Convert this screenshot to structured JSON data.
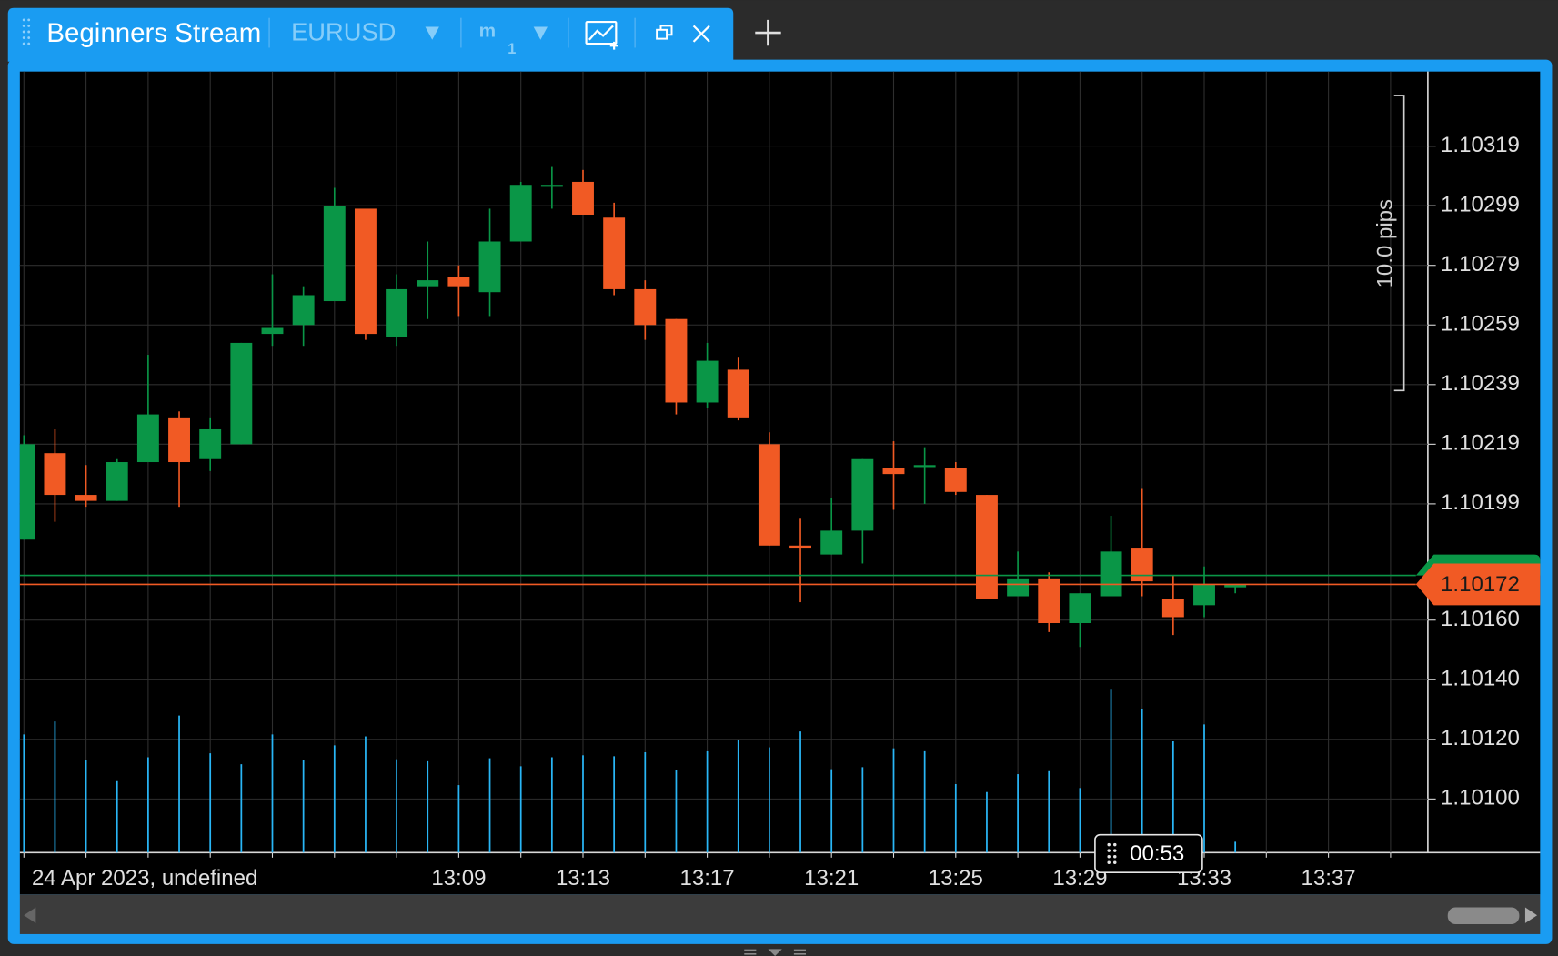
{
  "tab": {
    "title": "Beginners Stream",
    "symbol": "EURUSD",
    "timeframe": "m",
    "timeframe_count": "1"
  },
  "chart_data": {
    "type": "candlestick",
    "date_label": "24 Apr 2023, undefined",
    "open": [
      1.10187,
      1.10216,
      1.10202,
      1.102,
      1.10213,
      1.10228,
      1.10214,
      1.10219,
      1.10256,
      1.10259,
      1.10267,
      1.10298,
      1.10255,
      1.10272,
      1.10275,
      1.1027,
      1.10287,
      1.10306,
      1.10307,
      1.10295,
      1.10271,
      1.10261,
      1.10233,
      1.10244,
      1.10219,
      1.10185,
      1.10182,
      1.1019,
      1.10211,
      1.10212,
      1.10211,
      1.10202,
      1.10168,
      1.10174,
      1.10159,
      1.10168,
      1.10184,
      1.10167,
      1.10165,
      1.10171
    ],
    "high": [
      1.10222,
      1.10224,
      1.10212,
      1.10214,
      1.10249,
      1.1023,
      1.10228,
      1.10253,
      1.10276,
      1.10272,
      1.10305,
      1.10298,
      1.10276,
      1.10287,
      1.10279,
      1.10298,
      1.10307,
      1.10312,
      1.10311,
      1.103,
      1.10274,
      1.10261,
      1.10253,
      1.10248,
      1.10223,
      1.10194,
      1.10201,
      1.10214,
      1.1022,
      1.10218,
      1.10213,
      1.10202,
      1.10183,
      1.10176,
      1.10169,
      1.10195,
      1.10204,
      1.10175,
      1.10178,
      1.10172
    ],
    "low": [
      1.10187,
      1.10193,
      1.10198,
      1.102,
      1.10213,
      1.10198,
      1.1021,
      1.10219,
      1.10252,
      1.10252,
      1.10267,
      1.10254,
      1.10252,
      1.10261,
      1.10262,
      1.10262,
      1.10287,
      1.10298,
      1.10296,
      1.10269,
      1.10254,
      1.10229,
      1.10231,
      1.10227,
      1.10185,
      1.10166,
      1.10182,
      1.10179,
      1.10197,
      1.10199,
      1.10202,
      1.10167,
      1.10168,
      1.10156,
      1.10151,
      1.10168,
      1.10168,
      1.10155,
      1.10161,
      1.10169
    ],
    "close": [
      1.10219,
      1.10202,
      1.102,
      1.10213,
      1.10229,
      1.10213,
      1.10224,
      1.10253,
      1.10258,
      1.10269,
      1.10299,
      1.10256,
      1.10271,
      1.10274,
      1.10272,
      1.10287,
      1.10306,
      1.10306,
      1.10296,
      1.10271,
      1.10259,
      1.10233,
      1.10247,
      1.10228,
      1.10185,
      1.10184,
      1.1019,
      1.10214,
      1.10209,
      1.10212,
      1.10203,
      1.10167,
      1.10174,
      1.10159,
      1.10169,
      1.10183,
      1.10173,
      1.10161,
      1.10172,
      1.10172
    ],
    "volume": [
      119,
      132,
      93,
      72,
      96,
      138,
      100,
      89,
      119,
      93,
      108,
      117,
      94,
      92,
      68,
      95,
      87,
      96,
      98,
      97,
      101,
      83,
      102,
      113,
      106,
      122,
      84,
      86,
      105,
      102,
      69,
      61,
      79,
      82,
      65,
      164,
      144,
      112,
      129,
      11
    ],
    "up_color": "#0a9647",
    "down_color": "#f15a24",
    "volume_color": "#29b6f6",
    "xlim": [
      -0.13,
      45.2
    ],
    "xticks": [
      {
        "value": 14,
        "label": "13:09"
      },
      {
        "value": 18,
        "label": "13:13"
      },
      {
        "value": 22,
        "label": "13:17"
      },
      {
        "value": 26,
        "label": "13:21"
      },
      {
        "value": 30,
        "label": "13:25"
      },
      {
        "value": 34,
        "label": "13:29"
      },
      {
        "value": 38,
        "label": "13:33"
      },
      {
        "value": 42,
        "label": "13:37"
      }
    ],
    "ylim": [
      1.10082,
      1.10344
    ],
    "yticks": [
      1.10319,
      1.10299,
      1.10279,
      1.10259,
      1.10239,
      1.10219,
      1.10199,
      {
        "value": 1.1016,
        "label": "1.10160"
      },
      {
        "value": 1.1014,
        "label": "1.10140"
      },
      {
        "value": 1.1012,
        "label": "1.10120"
      },
      {
        "value": 1.101,
        "label": "1.10100"
      }
    ],
    "grid": true,
    "bid": 1.10172,
    "ask": 1.10175,
    "ruler_label": "10.0 pips",
    "countdown": "00:53"
  }
}
